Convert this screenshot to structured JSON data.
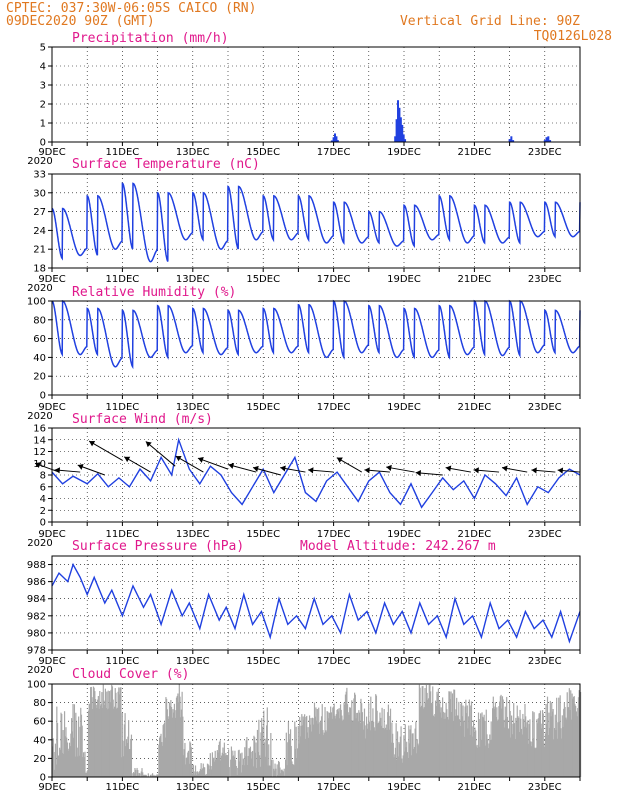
{
  "header": {
    "line1": "CPTEC:   037:30W-06:05S   CAICO (RN)",
    "line2": "09DEC2020 90Z (GMT)",
    "grid_note": "Vertical Grid Line: 90Z",
    "product_code": "TQ0126L028"
  },
  "colors": {
    "header": "#e07820",
    "title": "#e0188c",
    "line": "#2040e0",
    "bar": "#2040e0",
    "cloud": "#a8a8a8"
  },
  "x_labels": [
    "9DEC",
    "11DEC",
    "13DEC",
    "15DEC",
    "17DEC",
    "19DEC",
    "21DEC",
    "23DEC"
  ],
  "year_fragment": "2020",
  "chart_data": [
    {
      "id": "precip",
      "type": "bar",
      "title": "Precipitation (mm/h)",
      "ylim": [
        0,
        5
      ],
      "yticks": [
        0,
        1,
        2,
        3,
        4,
        5
      ],
      "x_start_day": 9,
      "x_end_day": 24,
      "values": [
        [
          16.95,
          0.08
        ],
        [
          17.0,
          0.25
        ],
        [
          17.04,
          0.45
        ],
        [
          17.08,
          0.3
        ],
        [
          17.12,
          0.1
        ],
        [
          18.75,
          0.3
        ],
        [
          18.79,
          1.2
        ],
        [
          18.83,
          2.2
        ],
        [
          18.87,
          1.8
        ],
        [
          18.91,
          1.3
        ],
        [
          18.95,
          0.9
        ],
        [
          18.99,
          0.4
        ],
        [
          19.03,
          0.15
        ],
        [
          22.0,
          0.15
        ],
        [
          22.05,
          0.3
        ],
        [
          22.1,
          0.1
        ],
        [
          23.0,
          0.1
        ],
        [
          23.05,
          0.25
        ],
        [
          23.1,
          0.3
        ],
        [
          23.15,
          0.1
        ]
      ]
    },
    {
      "id": "temp",
      "type": "line",
      "title": "Surface Temperature (nC)",
      "ylim": [
        18,
        33
      ],
      "yticks": [
        18,
        21,
        24,
        27,
        30,
        33
      ],
      "x_start_day": 9,
      "x_end_day": 24,
      "maxima": [
        27.5,
        29.5,
        31.5,
        30.0,
        30.0,
        31.0,
        29.5,
        29.5,
        28.5,
        27.0,
        28.0,
        29.5,
        28.0,
        28.5,
        28.5
      ],
      "minima": [
        19.5,
        20.0,
        21.0,
        19.0,
        22.5,
        21.0,
        22.5,
        22.5,
        22.0,
        22.0,
        21.5,
        22.5,
        22.0,
        22.0,
        23.0
      ]
    },
    {
      "id": "rh",
      "type": "line",
      "title": "Relative Humidity (%)",
      "ylim": [
        0,
        100
      ],
      "yticks": [
        0,
        20,
        40,
        60,
        80,
        100
      ],
      "x_start_day": 9,
      "x_end_day": 24,
      "maxima": [
        100,
        92,
        90,
        95,
        92,
        90,
        92,
        96,
        100,
        95,
        92,
        95,
        100,
        100,
        90
      ],
      "minima": [
        43,
        43,
        30,
        40,
        45,
        43,
        45,
        45,
        40,
        45,
        40,
        40,
        43,
        42,
        45
      ]
    },
    {
      "id": "wind",
      "type": "line",
      "title": "Surface Wind (m/s)",
      "ylim": [
        0,
        16
      ],
      "yticks": [
        0,
        2,
        4,
        6,
        8,
        10,
        12,
        14,
        16
      ],
      "x_start_day": 9,
      "x_end_day": 24,
      "speed": [
        [
          9.0,
          8.5
        ],
        [
          9.3,
          6.5
        ],
        [
          9.6,
          7.8
        ],
        [
          10.0,
          6.5
        ],
        [
          10.3,
          8.2
        ],
        [
          10.6,
          6.0
        ],
        [
          10.9,
          7.5
        ],
        [
          11.2,
          6.0
        ],
        [
          11.5,
          9.0
        ],
        [
          11.8,
          7.0
        ],
        [
          12.1,
          11.0
        ],
        [
          12.4,
          8.0
        ],
        [
          12.6,
          14.0
        ],
        [
          12.9,
          9.0
        ],
        [
          13.2,
          6.5
        ],
        [
          13.5,
          9.5
        ],
        [
          13.8,
          8.0
        ],
        [
          14.1,
          5.0
        ],
        [
          14.4,
          3.0
        ],
        [
          14.7,
          6.0
        ],
        [
          15.0,
          9.0
        ],
        [
          15.3,
          5.0
        ],
        [
          15.6,
          8.0
        ],
        [
          15.9,
          11.0
        ],
        [
          16.2,
          5.0
        ],
        [
          16.5,
          3.5
        ],
        [
          16.8,
          7.0
        ],
        [
          17.1,
          8.5
        ],
        [
          17.4,
          6.0
        ],
        [
          17.7,
          3.5
        ],
        [
          18.0,
          7.0
        ],
        [
          18.3,
          8.5
        ],
        [
          18.6,
          5.0
        ],
        [
          18.9,
          3.0
        ],
        [
          19.2,
          6.5
        ],
        [
          19.5,
          2.5
        ],
        [
          19.8,
          5.0
        ],
        [
          20.1,
          7.5
        ],
        [
          20.4,
          5.5
        ],
        [
          20.7,
          7.0
        ],
        [
          21.0,
          4.0
        ],
        [
          21.3,
          8.0
        ],
        [
          21.6,
          6.5
        ],
        [
          21.9,
          4.5
        ],
        [
          22.2,
          7.5
        ],
        [
          22.5,
          3.0
        ],
        [
          22.8,
          6.0
        ],
        [
          23.1,
          5.0
        ],
        [
          23.4,
          7.5
        ],
        [
          23.7,
          9.0
        ],
        [
          24.0,
          8.0
        ]
      ],
      "arrows": [
        [
          9.2,
          8.5,
          8.0,
          160
        ],
        [
          9.8,
          8.5,
          8.0,
          175
        ],
        [
          10.5,
          8.0,
          9.0,
          160
        ],
        [
          11.0,
          10.5,
          12.0,
          150
        ],
        [
          11.8,
          8.5,
          9.5,
          150
        ],
        [
          12.5,
          9.5,
          12.0,
          140
        ],
        [
          13.3,
          8.5,
          10.0,
          150
        ],
        [
          14.0,
          9.0,
          10.0,
          160
        ],
        [
          14.8,
          8.5,
          9.0,
          165
        ],
        [
          15.5,
          8.0,
          9.0,
          165
        ],
        [
          16.2,
          8.5,
          8.0,
          170
        ],
        [
          17.0,
          8.5,
          8.0,
          175
        ],
        [
          17.8,
          8.5,
          9.0,
          150
        ],
        [
          18.6,
          8.5,
          8.0,
          175
        ],
        [
          19.3,
          8.5,
          9.0,
          170
        ],
        [
          20.1,
          8.0,
          8.5,
          175
        ],
        [
          20.9,
          8.5,
          8.0,
          170
        ],
        [
          21.7,
          8.5,
          8.0,
          175
        ],
        [
          22.5,
          8.5,
          8.0,
          170
        ],
        [
          23.3,
          8.5,
          7.5,
          175
        ],
        [
          24.0,
          8.5,
          7.0,
          175
        ]
      ]
    },
    {
      "id": "pressure",
      "type": "line",
      "title": "Surface Pressure (hPa)",
      "altitude_label": "Model Altitude: 242.267  m",
      "ylim": [
        978,
        989
      ],
      "yticks": [
        978,
        980,
        982,
        984,
        986,
        988
      ],
      "x_start_day": 9,
      "x_end_day": 24,
      "series": [
        [
          9.0,
          985.5
        ],
        [
          9.2,
          987.0
        ],
        [
          9.45,
          986.0
        ],
        [
          9.6,
          988.0
        ],
        [
          9.8,
          986.5
        ],
        [
          10.0,
          984.5
        ],
        [
          10.2,
          986.5
        ],
        [
          10.5,
          983.5
        ],
        [
          10.7,
          985.0
        ],
        [
          11.0,
          982.0
        ],
        [
          11.3,
          985.5
        ],
        [
          11.6,
          983.0
        ],
        [
          11.8,
          984.5
        ],
        [
          12.1,
          981.0
        ],
        [
          12.4,
          985.0
        ],
        [
          12.7,
          982.0
        ],
        [
          12.9,
          983.5
        ],
        [
          13.2,
          980.5
        ],
        [
          13.45,
          984.5
        ],
        [
          13.75,
          981.5
        ],
        [
          13.95,
          983.0
        ],
        [
          14.2,
          980.5
        ],
        [
          14.45,
          984.5
        ],
        [
          14.7,
          981.0
        ],
        [
          14.95,
          982.5
        ],
        [
          15.2,
          979.5
        ],
        [
          15.45,
          984.0
        ],
        [
          15.7,
          981.0
        ],
        [
          15.95,
          982.0
        ],
        [
          16.2,
          980.5
        ],
        [
          16.45,
          984.0
        ],
        [
          16.7,
          981.0
        ],
        [
          16.95,
          982.0
        ],
        [
          17.2,
          980.0
        ],
        [
          17.45,
          984.5
        ],
        [
          17.7,
          981.5
        ],
        [
          17.95,
          982.5
        ],
        [
          18.2,
          980.0
        ],
        [
          18.45,
          983.5
        ],
        [
          18.7,
          981.0
        ],
        [
          18.95,
          982.5
        ],
        [
          19.2,
          980.0
        ],
        [
          19.45,
          983.5
        ],
        [
          19.7,
          981.0
        ],
        [
          19.95,
          982.0
        ],
        [
          20.2,
          979.5
        ],
        [
          20.45,
          984.0
        ],
        [
          20.7,
          981.0
        ],
        [
          20.95,
          982.0
        ],
        [
          21.2,
          979.5
        ],
        [
          21.45,
          983.5
        ],
        [
          21.7,
          980.5
        ],
        [
          21.95,
          981.5
        ],
        [
          22.2,
          979.5
        ],
        [
          22.45,
          982.5
        ],
        [
          22.7,
          980.5
        ],
        [
          22.95,
          981.5
        ],
        [
          23.2,
          979.5
        ],
        [
          23.45,
          982.5
        ],
        [
          23.7,
          979.0
        ],
        [
          24.0,
          982.5
        ]
      ]
    },
    {
      "id": "cloud",
      "type": "bar",
      "title": "Cloud Cover (%)",
      "ylim": [
        0,
        100
      ],
      "yticks": [
        0,
        20,
        40,
        60,
        80,
        100
      ],
      "x_start_day": 9,
      "x_end_day": 24,
      "segments": [
        [
          9.0,
          9.35,
          5,
          90
        ],
        [
          9.35,
          9.9,
          20,
          80
        ],
        [
          9.9,
          10.0,
          0,
          30
        ],
        [
          10.0,
          10.95,
          70,
          100
        ],
        [
          10.95,
          11.25,
          20,
          70
        ],
        [
          11.25,
          11.6,
          0,
          10
        ],
        [
          11.6,
          12.0,
          0,
          5
        ],
        [
          12.0,
          12.2,
          30,
          60
        ],
        [
          12.2,
          12.7,
          60,
          100
        ],
        [
          12.7,
          12.95,
          10,
          40
        ],
        [
          13.0,
          13.4,
          0,
          15
        ],
        [
          13.4,
          13.7,
          5,
          30
        ],
        [
          13.7,
          14.0,
          15,
          40
        ],
        [
          14.0,
          14.4,
          0,
          35
        ],
        [
          14.4,
          14.8,
          0,
          45
        ],
        [
          14.8,
          15.2,
          10,
          80
        ],
        [
          15.2,
          15.6,
          0,
          20
        ],
        [
          15.6,
          16.0,
          10,
          60
        ],
        [
          16.0,
          16.4,
          40,
          70
        ],
        [
          16.4,
          16.8,
          45,
          80
        ],
        [
          16.8,
          17.3,
          60,
          80
        ],
        [
          17.3,
          17.8,
          50,
          100
        ],
        [
          17.8,
          18.2,
          40,
          90
        ],
        [
          18.2,
          18.6,
          50,
          80
        ],
        [
          18.6,
          19.0,
          15,
          60
        ],
        [
          19.0,
          19.4,
          20,
          60
        ],
        [
          19.4,
          19.8,
          70,
          100
        ],
        [
          19.8,
          20.5,
          60,
          95
        ],
        [
          20.5,
          21.0,
          40,
          85
        ],
        [
          21.0,
          21.5,
          30,
          75
        ],
        [
          21.5,
          22.0,
          50,
          90
        ],
        [
          22.0,
          22.5,
          40,
          85
        ],
        [
          22.5,
          23.0,
          30,
          75
        ],
        [
          23.0,
          23.5,
          40,
          90
        ],
        [
          23.5,
          24.0,
          60,
          100
        ]
      ]
    }
  ]
}
